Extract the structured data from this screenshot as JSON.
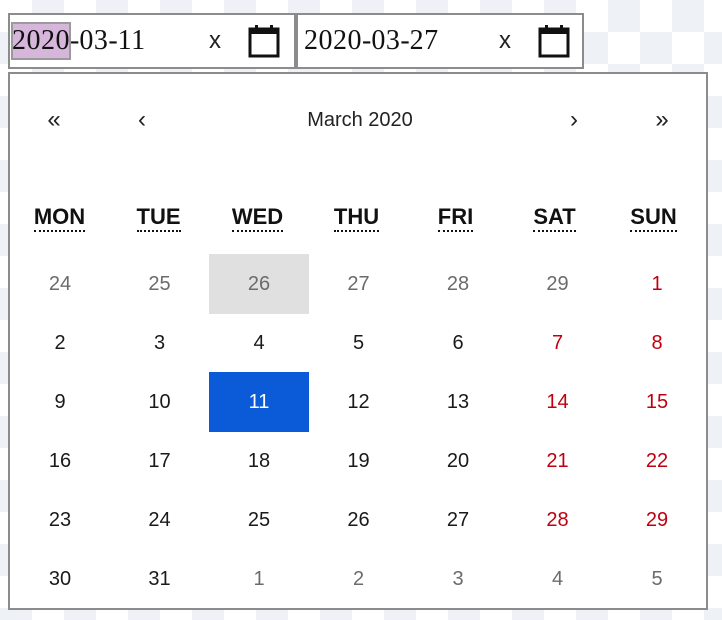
{
  "start_field": {
    "year": "2020",
    "month": "03",
    "day": "11",
    "separator": "-",
    "clear_label": "x"
  },
  "end_field": {
    "year": "2020",
    "month": "03",
    "day": "27",
    "separator": "-",
    "clear_label": "x"
  },
  "calendar": {
    "prev_year": "«",
    "prev_month": "‹",
    "month_label": "March 2020",
    "next_month": "›",
    "next_year": "»",
    "weekdays": [
      "MON",
      "TUE",
      "WED",
      "THU",
      "FRI",
      "SAT",
      "SUN"
    ],
    "weeks": [
      [
        {
          "d": "24",
          "k": "other"
        },
        {
          "d": "25",
          "k": "other"
        },
        {
          "d": "26",
          "k": "other today"
        },
        {
          "d": "27",
          "k": "other"
        },
        {
          "d": "28",
          "k": "other"
        },
        {
          "d": "29",
          "k": "other"
        },
        {
          "d": "1",
          "k": "weekend"
        }
      ],
      [
        {
          "d": "2",
          "k": ""
        },
        {
          "d": "3",
          "k": ""
        },
        {
          "d": "4",
          "k": ""
        },
        {
          "d": "5",
          "k": ""
        },
        {
          "d": "6",
          "k": ""
        },
        {
          "d": "7",
          "k": "weekend"
        },
        {
          "d": "8",
          "k": "weekend"
        }
      ],
      [
        {
          "d": "9",
          "k": ""
        },
        {
          "d": "10",
          "k": ""
        },
        {
          "d": "11",
          "k": "selected"
        },
        {
          "d": "12",
          "k": ""
        },
        {
          "d": "13",
          "k": ""
        },
        {
          "d": "14",
          "k": "weekend"
        },
        {
          "d": "15",
          "k": "weekend"
        }
      ],
      [
        {
          "d": "16",
          "k": ""
        },
        {
          "d": "17",
          "k": ""
        },
        {
          "d": "18",
          "k": ""
        },
        {
          "d": "19",
          "k": ""
        },
        {
          "d": "20",
          "k": ""
        },
        {
          "d": "21",
          "k": "weekend"
        },
        {
          "d": "22",
          "k": "weekend"
        }
      ],
      [
        {
          "d": "23",
          "k": ""
        },
        {
          "d": "24",
          "k": ""
        },
        {
          "d": "25",
          "k": ""
        },
        {
          "d": "26",
          "k": ""
        },
        {
          "d": "27",
          "k": ""
        },
        {
          "d": "28",
          "k": "weekend"
        },
        {
          "d": "29",
          "k": "weekend"
        }
      ],
      [
        {
          "d": "30",
          "k": ""
        },
        {
          "d": "31",
          "k": ""
        },
        {
          "d": "1",
          "k": "other"
        },
        {
          "d": "2",
          "k": "other"
        },
        {
          "d": "3",
          "k": "other"
        },
        {
          "d": "4",
          "k": "other"
        },
        {
          "d": "5",
          "k": "other"
        }
      ]
    ]
  },
  "colors": {
    "selected": "#0b5bd8",
    "today": "#e0e0e0",
    "weekend": "#c0000f",
    "other_month": "#6b6b6b",
    "segment_highlight": "#d7b6dc"
  },
  "icons": {
    "calendar": "calendar-icon",
    "clear": "clear-icon"
  }
}
